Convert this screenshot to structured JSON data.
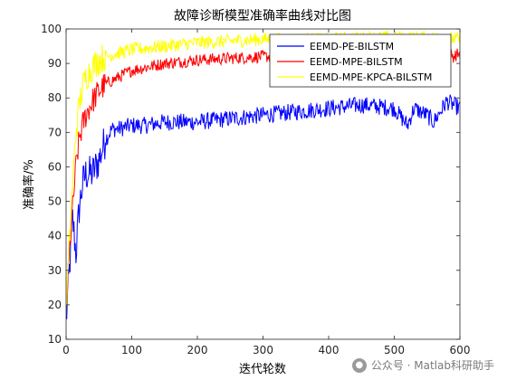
{
  "chart_data": {
    "type": "line",
    "title": "故障诊断模型准确率曲线对比图",
    "xlabel": "迭代轮数",
    "ylabel": "准确率/%",
    "xlim": [
      0,
      600
    ],
    "ylim": [
      10,
      100
    ],
    "xticks": [
      0,
      100,
      200,
      300,
      400,
      500,
      600
    ],
    "yticks": [
      10,
      20,
      30,
      40,
      50,
      60,
      70,
      80,
      90,
      100
    ],
    "grid": false,
    "legend_position": "top-right",
    "series": [
      {
        "name": "EEMD-PE-BILSTM",
        "color": "#0000ff",
        "x": [
          0,
          5,
          10,
          15,
          20,
          25,
          30,
          40,
          50,
          60,
          70,
          80,
          100,
          120,
          150,
          200,
          250,
          300,
          350,
          400,
          450,
          500,
          520,
          530,
          550,
          560,
          580,
          590,
          600
        ],
        "y": [
          15,
          30,
          45,
          35,
          48,
          55,
          58,
          58,
          62,
          68,
          71,
          71,
          72,
          72,
          73,
          73,
          74,
          75,
          76,
          77,
          78,
          77,
          72,
          77,
          75,
          73,
          79,
          78,
          77
        ],
        "noise": 2.5
      },
      {
        "name": "EEMD-MPE-BILSTM",
        "color": "#ff0000",
        "x": [
          0,
          5,
          10,
          15,
          20,
          25,
          30,
          40,
          50,
          60,
          80,
          100,
          150,
          200,
          250,
          300,
          350,
          400,
          450,
          500,
          550,
          580,
          590,
          600
        ],
        "y": [
          18,
          35,
          48,
          60,
          68,
          72,
          75,
          79,
          82,
          84,
          86,
          88,
          90,
          91,
          91.5,
          92,
          92,
          92.5,
          93,
          93,
          94,
          94,
          92,
          93
        ],
        "noise": 1.8
      },
      {
        "name": "EEMD-MPE-KPCA-BILSTM",
        "color": "#ffff00",
        "x": [
          0,
          5,
          10,
          15,
          20,
          25,
          30,
          40,
          50,
          60,
          80,
          100,
          150,
          200,
          250,
          300,
          350,
          400,
          450,
          500,
          550,
          600
        ],
        "y": [
          18,
          38,
          55,
          70,
          78,
          83,
          86,
          89,
          91,
          92,
          93,
          94,
          95,
          96,
          96.5,
          97,
          97,
          97,
          97.5,
          97.5,
          97.5,
          97
        ],
        "noise": 2.0
      }
    ]
  },
  "watermark": {
    "icon": "wechat-icon",
    "text": "公众号 · Matlab科研助手"
  }
}
